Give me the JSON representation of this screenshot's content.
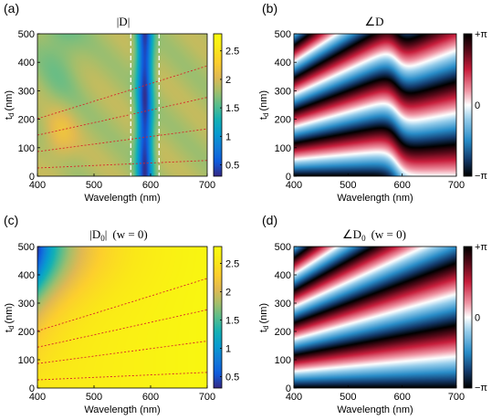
{
  "chart_data": [
    {
      "panel_label": "(a)",
      "type": "heatmap",
      "title": "|D|",
      "xlabel": "Wavelength (nm)",
      "ylabel_main": "t",
      "ylabel_sub": "d",
      "ylabel_unit": "(nm)",
      "xlim": [
        400,
        700
      ],
      "ylim": [
        0,
        500
      ],
      "xticks": [
        "400",
        "500",
        "600",
        "700"
      ],
      "yticks": [
        "0",
        "100",
        "200",
        "300",
        "400",
        "500"
      ],
      "colorbar": {
        "min": 0.3,
        "max": 2.8,
        "ticks": [
          "0.5",
          "1",
          "1.5",
          "2",
          "2.5"
        ],
        "tick_values": [
          0.5,
          1,
          1.5,
          2,
          2.5
        ],
        "colormap": "parula"
      },
      "dashed_lines_white": [
        565,
        615
      ],
      "resonance_center_nm": 590,
      "red_dotted_curves": true
    },
    {
      "panel_label": "(b)",
      "type": "heatmap",
      "title": "∠D",
      "xlabel": "Wavelength (nm)",
      "ylabel_main": "t",
      "ylabel_sub": "d",
      "ylabel_unit": "(nm)",
      "xlim": [
        400,
        700
      ],
      "ylim": [
        0,
        500
      ],
      "xticks": [
        "400",
        "500",
        "600",
        "700"
      ],
      "yticks": [
        "0",
        "100",
        "200",
        "300",
        "400",
        "500"
      ],
      "colorbar": {
        "ticks": [
          "+π",
          "0",
          "−π"
        ],
        "colormap": "phase"
      }
    },
    {
      "panel_label": "(c)",
      "type": "heatmap",
      "title_main": "|D",
      "title_sub": "0",
      "title_end": "|",
      "title_cond": "(w = 0)",
      "xlabel": "Wavelength (nm)",
      "ylabel_main": "t",
      "ylabel_sub": "d",
      "ylabel_unit": "(nm)",
      "xlim": [
        400,
        700
      ],
      "ylim": [
        0,
        500
      ],
      "xticks": [
        "400",
        "500",
        "600",
        "700"
      ],
      "yticks": [
        "0",
        "100",
        "200",
        "300",
        "400",
        "500"
      ],
      "colorbar": {
        "min": 0.3,
        "max": 2.8,
        "ticks": [
          "0.5",
          "1",
          "1.5",
          "2",
          "2.5"
        ],
        "tick_values": [
          0.5,
          1,
          1.5,
          2,
          2.5
        ],
        "colormap": "parula"
      },
      "red_dotted_curves": true
    },
    {
      "panel_label": "(d)",
      "type": "heatmap",
      "title_main": "∠D",
      "title_sub": "0",
      "title_cond": "(w = 0)",
      "xlabel": "Wavelength (nm)",
      "ylabel_main": "t",
      "ylabel_sub": "d",
      "ylabel_unit": "(nm)",
      "xlim": [
        400,
        700
      ],
      "ylim": [
        0,
        500
      ],
      "xticks": [
        "400",
        "500",
        "600",
        "700"
      ],
      "yticks": [
        "0",
        "100",
        "200",
        "300",
        "400",
        "500"
      ],
      "colorbar": {
        "ticks": [
          "+π",
          "0",
          "−π"
        ],
        "colormap": "phase"
      }
    }
  ]
}
